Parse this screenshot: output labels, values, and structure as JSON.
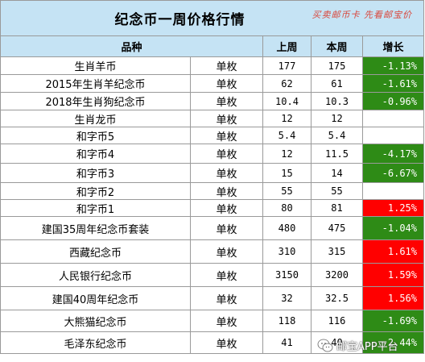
{
  "title": "纪念币一周价格行情",
  "slogan": "买卖邮币卡 先看邮宝价",
  "headers": {
    "variety": "品种",
    "last_week": "上周",
    "this_week": "本周",
    "change": "增长"
  },
  "rows": [
    {
      "name": "生肖羊币",
      "unit": "单枚",
      "last": "177",
      "current": "175",
      "change": "-1.13%",
      "trend": "neg"
    },
    {
      "name": "2015年生肖羊纪念币",
      "unit": "单枚",
      "last": "62",
      "current": "61",
      "change": "-1.61%",
      "trend": "neg"
    },
    {
      "name": "2018年生肖狗纪念币",
      "unit": "单枚",
      "last": "10.4",
      "current": "10.3",
      "change": "-0.96%",
      "trend": "neg"
    },
    {
      "name": "生肖龙币",
      "unit": "单枚",
      "last": "12",
      "current": "12",
      "change": "",
      "trend": "none"
    },
    {
      "name": "和字币5",
      "unit": "单枚",
      "last": "5.4",
      "current": "5.4",
      "change": "",
      "trend": "none"
    },
    {
      "name": "和字币4",
      "unit": "单枚",
      "last": "12",
      "current": "11.5",
      "change": "-4.17%",
      "trend": "neg"
    },
    {
      "name": "和字币3",
      "unit": "单枚",
      "last": "15",
      "current": "14",
      "change": "-6.67%",
      "trend": "neg"
    },
    {
      "name": "和字币2",
      "unit": "单枚",
      "last": "55",
      "current": "55",
      "change": "",
      "trend": "none"
    },
    {
      "name": "和字币1",
      "unit": "单枚",
      "last": "80",
      "current": "81",
      "change": "1.25%",
      "trend": "pos"
    },
    {
      "name": "建国35周年纪念币套装",
      "unit": "单枚",
      "last": "480",
      "current": "475",
      "change": "-1.04%",
      "trend": "neg"
    },
    {
      "name": "西藏纪念币",
      "unit": "单枚",
      "last": "310",
      "current": "315",
      "change": "1.61%",
      "trend": "pos"
    },
    {
      "name": "人民银行纪念币",
      "unit": "单枚",
      "last": "3150",
      "current": "3200",
      "change": "1.59%",
      "trend": "pos"
    },
    {
      "name": "建国40周年纪念币",
      "unit": "单枚",
      "last": "32",
      "current": "32.5",
      "change": "1.56%",
      "trend": "pos"
    },
    {
      "name": "大熊猫纪念币",
      "unit": "单枚",
      "last": "118",
      "current": "116",
      "change": "-1.69%",
      "trend": "neg"
    },
    {
      "name": "毛泽东纪念币",
      "unit": "单枚",
      "last": "41",
      "current": "40",
      "change": "-2.44%",
      "trend": "neg"
    }
  ],
  "watermark": {
    "text": "邮宝APP平台",
    "icon": "wechat-icon"
  },
  "colors": {
    "header_bg": "#c5e3f4",
    "decrease": "#2e8b16",
    "increase": "#ff0000",
    "slogan": "#d9473c"
  }
}
